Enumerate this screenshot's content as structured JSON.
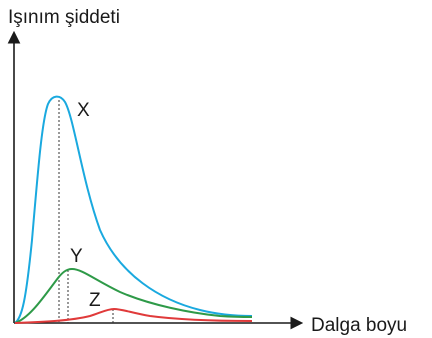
{
  "axes": {
    "y_label": "Işınım şiddeti",
    "x_label": "Dalga boyu"
  },
  "curves": [
    {
      "label": "X",
      "color": "#1aa9df",
      "relative_peak": 1.0
    },
    {
      "label": "Y",
      "color": "#2e9a48",
      "relative_peak": 0.24
    },
    {
      "label": "Z",
      "color": "#e03a3a",
      "relative_peak": 0.07
    }
  ],
  "axis_color": "#1a1a1a",
  "guide_style": "dotted vertical line at each peak"
}
